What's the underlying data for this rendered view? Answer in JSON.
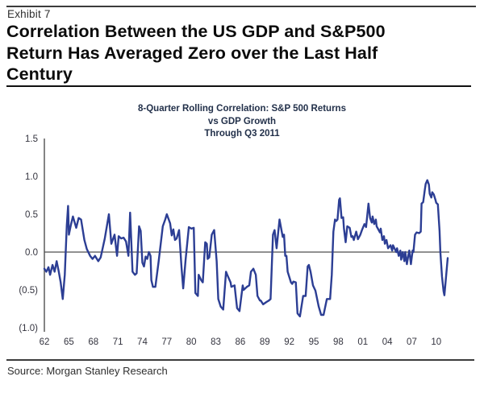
{
  "header": {
    "exhibit_label": "Exhibit 7",
    "title_lines": [
      "Correlation Between the US GDP and S&P500",
      "Return Has Averaged Zero over the Last Half",
      "Century"
    ]
  },
  "footer": {
    "source": "Source: Morgan Stanley Research"
  },
  "colors": {
    "line": "#2c3e94",
    "axis": "#4f4f4f",
    "tick_text": "#34343f"
  },
  "chart_data": {
    "type": "line",
    "title_lines": [
      "8-Quarter Rolling Correlation: S&P 500 Returns",
      "vs GDP Growth",
      "Through Q3 2011"
    ],
    "xlabel": "",
    "ylabel": "",
    "x_range": [
      1962,
      2011.5
    ],
    "y_range": [
      -1.0,
      1.5
    ],
    "grid": false,
    "legend": "none",
    "zero_line": true,
    "y_ticks": [
      {
        "v": 1.5,
        "label": "1.5"
      },
      {
        "v": 1.0,
        "label": "1.0"
      },
      {
        "v": 0.5,
        "label": "0.5"
      },
      {
        "v": 0.0,
        "label": "0.0"
      },
      {
        "v": -0.5,
        "label": "(0.5)"
      },
      {
        "v": -1.0,
        "label": "(1.0)"
      }
    ],
    "x_ticks": [
      {
        "year": 1962,
        "label": "62"
      },
      {
        "year": 1965,
        "label": "65"
      },
      {
        "year": 1968,
        "label": "68"
      },
      {
        "year": 1971,
        "label": "71"
      },
      {
        "year": 1974,
        "label": "74"
      },
      {
        "year": 1977,
        "label": "77"
      },
      {
        "year": 1980,
        "label": "80"
      },
      {
        "year": 1983,
        "label": "83"
      },
      {
        "year": 1986,
        "label": "86"
      },
      {
        "year": 1989,
        "label": "89"
      },
      {
        "year": 1992,
        "label": "92"
      },
      {
        "year": 1995,
        "label": "95"
      },
      {
        "year": 1998,
        "label": "98"
      },
      {
        "year": 2001,
        "label": "01"
      },
      {
        "year": 2004,
        "label": "04"
      },
      {
        "year": 2007,
        "label": "07"
      },
      {
        "year": 2010,
        "label": "10"
      }
    ],
    "series": [
      {
        "name": "8-quarter rolling correlation of S&P 500 returns vs GDP growth",
        "x": [
          1962.0,
          1962.25,
          1962.5,
          1962.7,
          1963.0,
          1963.25,
          1963.5,
          1963.75,
          1964.0,
          1964.25,
          1964.5,
          1964.75,
          1964.9,
          1965.0,
          1965.25,
          1965.5,
          1965.9,
          1966.2,
          1966.5,
          1966.9,
          1967.2,
          1967.6,
          1967.9,
          1968.2,
          1968.6,
          1968.9,
          1969.4,
          1969.9,
          1970.2,
          1970.6,
          1970.9,
          1971.1,
          1971.4,
          1971.7,
          1972.0,
          1972.3,
          1972.5,
          1972.8,
          1973.1,
          1973.3,
          1973.6,
          1973.8,
          1974.0,
          1974.2,
          1974.4,
          1974.6,
          1974.8,
          1975.0,
          1975.1,
          1975.3,
          1975.6,
          1976.0,
          1976.5,
          1976.8,
          1977.0,
          1977.4,
          1977.6,
          1977.8,
          1978.0,
          1978.2,
          1978.5,
          1978.8,
          1979.0,
          1979.3,
          1979.7,
          1980.0,
          1980.3,
          1980.5,
          1980.8,
          1980.9,
          1981.2,
          1981.4,
          1981.7,
          1981.9,
          1982.0,
          1982.2,
          1982.4,
          1982.5,
          1982.8,
          1983.1,
          1983.3,
          1983.6,
          1983.9,
          1984.25,
          1984.4,
          1984.8,
          1984.9,
          1985.3,
          1985.4,
          1985.6,
          1985.9,
          1986.3,
          1986.4,
          1986.6,
          1986.8,
          1987.1,
          1987.3,
          1987.6,
          1987.9,
          1988.1,
          1988.4,
          1988.5,
          1988.8,
          1989.2,
          1989.5,
          1989.7,
          1990.0,
          1990.2,
          1990.45,
          1990.8,
          1991.2,
          1991.35,
          1991.5,
          1991.65,
          1991.8,
          1992.2,
          1992.35,
          1992.5,
          1992.8,
          1993.0,
          1993.3,
          1993.7,
          1994.0,
          1994.25,
          1994.4,
          1994.6,
          1994.9,
          1995.2,
          1995.6,
          1995.9,
          1996.2,
          1996.6,
          1997.0,
          1997.2,
          1997.4,
          1997.6,
          1997.75,
          1997.9,
          1998.1,
          1998.2,
          1998.4,
          1998.6,
          1998.7,
          1998.9,
          1999.1,
          1999.4,
          1999.6,
          1999.75,
          1999.9,
          2000.2,
          2000.4,
          2000.7,
          2000.9,
          2001.2,
          2001.4,
          2001.7,
          2001.9,
          2002.1,
          2002.2,
          2002.4,
          2002.6,
          2002.7,
          2003.1,
          2003.2,
          2003.4,
          2003.6,
          2003.7,
          2003.9,
          2004.1,
          2004.4,
          2004.6,
          2004.7,
          2005.1,
          2005.2,
          2005.4,
          2005.6,
          2005.7,
          2005.9,
          2006.1,
          2006.2,
          2006.4,
          2006.6,
          2006.7,
          2006.9,
          2007.1,
          2007.2,
          2007.4,
          2007.6,
          2007.9,
          2008.1,
          2008.2,
          2008.4,
          2008.6,
          2008.7,
          2008.9,
          2009.1,
          2009.2,
          2009.4,
          2009.5,
          2009.7,
          2009.9,
          2010.0,
          2010.2,
          2010.4,
          2010.5,
          2010.7,
          2010.9,
          2011.0,
          2011.2,
          2011.4
        ],
        "y": [
          -0.22,
          -0.26,
          -0.2,
          -0.3,
          -0.17,
          -0.26,
          -0.12,
          -0.25,
          -0.4,
          -0.62,
          -0.3,
          0.35,
          0.61,
          0.23,
          0.36,
          0.47,
          0.32,
          0.45,
          0.43,
          0.16,
          0.04,
          -0.05,
          -0.09,
          -0.05,
          -0.12,
          -0.07,
          0.18,
          0.5,
          0.11,
          0.23,
          -0.05,
          0.21,
          0.18,
          0.19,
          0.14,
          -0.05,
          0.52,
          -0.26,
          -0.3,
          -0.28,
          0.34,
          0.28,
          -0.14,
          -0.19,
          -0.06,
          -0.09,
          0.0,
          -0.05,
          -0.37,
          -0.46,
          -0.46,
          -0.12,
          0.34,
          0.43,
          0.5,
          0.38,
          0.22,
          0.3,
          0.16,
          0.18,
          0.29,
          -0.2,
          -0.48,
          -0.1,
          0.33,
          0.31,
          0.32,
          -0.54,
          -0.58,
          -0.3,
          -0.37,
          -0.4,
          0.13,
          0.11,
          -0.09,
          -0.07,
          0.13,
          0.23,
          0.29,
          -0.12,
          -0.62,
          -0.72,
          -0.76,
          -0.26,
          -0.3,
          -0.4,
          -0.46,
          -0.44,
          -0.54,
          -0.74,
          -0.78,
          -0.44,
          -0.5,
          -0.48,
          -0.46,
          -0.44,
          -0.26,
          -0.22,
          -0.3,
          -0.58,
          -0.64,
          -0.64,
          -0.69,
          -0.66,
          -0.64,
          -0.62,
          0.23,
          0.29,
          0.05,
          0.43,
          0.2,
          0.23,
          -0.05,
          -0.05,
          -0.26,
          -0.4,
          -0.42,
          -0.39,
          -0.4,
          -0.81,
          -0.85,
          -0.58,
          -0.58,
          -0.19,
          -0.17,
          -0.26,
          -0.44,
          -0.51,
          -0.72,
          -0.83,
          -0.83,
          -0.62,
          -0.62,
          -0.3,
          0.27,
          0.43,
          0.41,
          0.43,
          0.69,
          0.71,
          0.45,
          0.46,
          0.31,
          0.13,
          0.34,
          0.32,
          0.2,
          0.21,
          0.16,
          0.27,
          0.17,
          0.23,
          0.29,
          0.37,
          0.33,
          0.64,
          0.45,
          0.39,
          0.47,
          0.37,
          0.43,
          0.34,
          0.26,
          0.31,
          0.16,
          0.21,
          0.11,
          0.16,
          0.05,
          0.09,
          0.02,
          0.09,
          0.0,
          0.05,
          -0.05,
          0.02,
          -0.1,
          0.0,
          -0.12,
          0.0,
          -0.16,
          -0.03,
          0.02,
          -0.16,
          0.02,
          0.0,
          0.23,
          0.26,
          0.25,
          0.27,
          0.64,
          0.66,
          0.82,
          0.9,
          0.95,
          0.89,
          0.77,
          0.72,
          0.79,
          0.76,
          0.69,
          0.65,
          0.63,
          0.28,
          0.0,
          -0.32,
          -0.52,
          -0.57,
          -0.32,
          -0.08
        ]
      }
    ]
  }
}
